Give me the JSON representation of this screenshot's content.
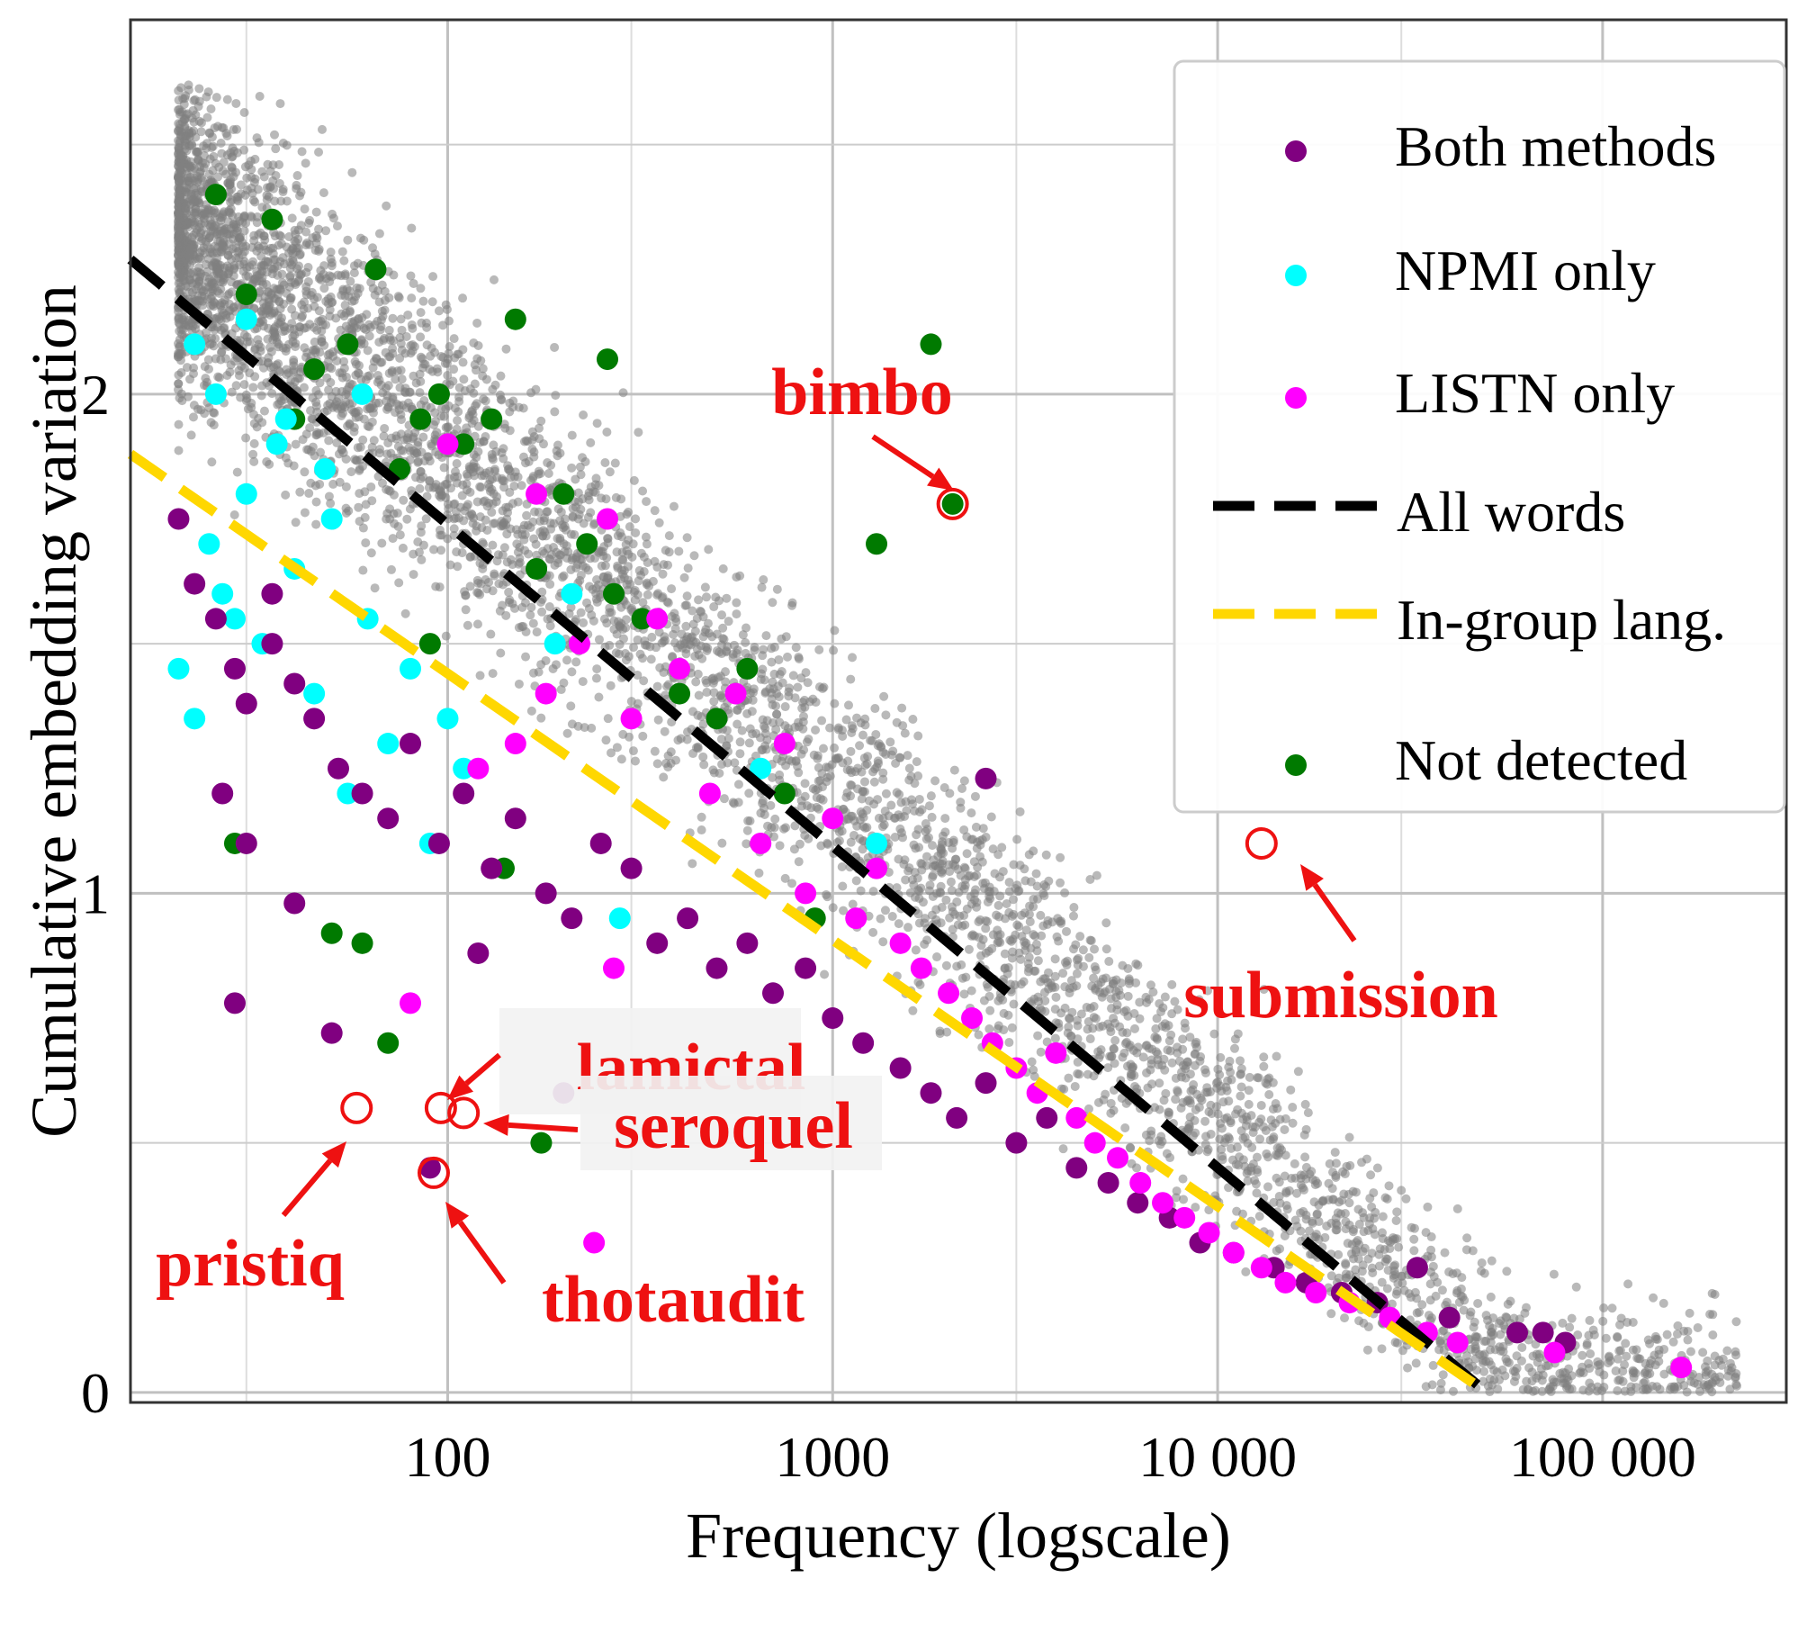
{
  "colors": {
    "background_points": "#808080",
    "both": "#800080",
    "npmi": "#00ffff",
    "listn": "#ff00ff",
    "not_detected": "#007a00",
    "all_words_line": "#000000",
    "ingroup_line": "#ffd700",
    "annotation": "#ee1111",
    "grid": "#c0c0c0"
  },
  "chart_data": {
    "type": "scatter",
    "xlabel": "Frequency (logscale)",
    "ylabel": "Cumulative embedding variation",
    "x_scale": "log",
    "xlim": [
      15,
      300000
    ],
    "ylim": [
      -0.02,
      2.75
    ],
    "x_ticks": [
      100,
      1000,
      10000,
      100000
    ],
    "x_tick_labels": [
      "100",
      "1000",
      "10 000",
      "100 000"
    ],
    "y_ticks": [
      0,
      1,
      2
    ],
    "y_tick_labels": [
      "0",
      "1",
      "2"
    ],
    "grid": true,
    "legend_position": "top-right",
    "legend": [
      {
        "label": "Both methods",
        "kind": "marker",
        "series": "both"
      },
      {
        "label": "NPMI only",
        "kind": "marker",
        "series": "npmi"
      },
      {
        "label": "LISTN only",
        "kind": "marker",
        "series": "listn"
      },
      {
        "label": "All words",
        "kind": "dashed-line",
        "series": "all_words"
      },
      {
        "label": "In-group lang.",
        "kind": "dashed-line",
        "series": "ingroup"
      },
      {
        "label": "Not detected",
        "kind": "marker",
        "series": "not_detected"
      }
    ],
    "lines": [
      {
        "name": "All words",
        "x": [
          15,
          50000
        ],
        "y": [
          2.27,
          0.0
        ]
      },
      {
        "name": "In-group lang.",
        "x": [
          15,
          50000
        ],
        "y": [
          1.88,
          0.0
        ]
      }
    ],
    "series": [
      {
        "name": "Both methods",
        "x": [
          20,
          22,
          25,
          28,
          30,
          35,
          40,
          45,
          52,
          60,
          70,
          80,
          95,
          110,
          130,
          150,
          180,
          210,
          250,
          300,
          350,
          420,
          500,
          600,
          700,
          850,
          1000,
          1200,
          1500,
          1800,
          2100,
          2500,
          3000,
          3600,
          4300,
          5200,
          6200,
          7500,
          9000,
          11000,
          14000,
          17000,
          21000,
          26000,
          33000,
          40000,
          60000,
          70000,
          80000,
          28,
          50,
          30,
          40,
          26,
          90,
          2500,
          35,
          120,
          200
        ],
        "y": [
          1.75,
          1.62,
          1.55,
          1.45,
          1.38,
          1.5,
          1.42,
          1.35,
          1.25,
          1.2,
          1.15,
          1.3,
          1.1,
          1.2,
          1.05,
          1.15,
          1.0,
          0.95,
          1.1,
          1.05,
          0.9,
          0.95,
          0.85,
          0.9,
          0.8,
          0.85,
          0.75,
          0.7,
          0.65,
          0.6,
          0.55,
          0.62,
          0.5,
          0.55,
          0.45,
          0.42,
          0.38,
          0.35,
          0.3,
          0.28,
          0.25,
          0.22,
          0.2,
          0.18,
          0.25,
          0.15,
          0.12,
          0.12,
          0.1,
          0.78,
          0.72,
          1.1,
          0.98,
          1.2,
          0.45,
          1.23,
          1.6,
          0.88,
          0.6
        ]
      },
      {
        "name": "NPMI only",
        "x": [
          20,
          22,
          24,
          26,
          28,
          30,
          33,
          36,
          40,
          45,
          50,
          55,
          62,
          70,
          80,
          90,
          100,
          110,
          190,
          210,
          280,
          650,
          1300,
          22,
          25,
          30,
          38,
          48,
          60
        ],
        "y": [
          1.45,
          1.35,
          1.7,
          1.6,
          1.55,
          1.8,
          1.5,
          1.9,
          1.65,
          1.4,
          1.75,
          1.2,
          1.55,
          1.3,
          1.45,
          1.1,
          1.35,
          1.25,
          1.5,
          1.6,
          0.95,
          1.25,
          1.1,
          2.1,
          2.0,
          2.15,
          1.95,
          1.85,
          2.0
        ]
      },
      {
        "name": "LISTN only",
        "x": [
          80,
          100,
          120,
          150,
          180,
          220,
          260,
          300,
          350,
          400,
          480,
          560,
          650,
          750,
          850,
          1000,
          1150,
          1300,
          1500,
          1700,
          2000,
          2300,
          2600,
          3000,
          3400,
          3800,
          4300,
          4800,
          5500,
          6300,
          7200,
          8200,
          9500,
          11000,
          13000,
          15000,
          18000,
          22000,
          28000,
          35000,
          42000,
          75000,
          160000,
          240,
          170,
          270
        ],
        "y": [
          0.78,
          1.9,
          1.25,
          1.3,
          1.4,
          1.5,
          1.75,
          1.35,
          1.55,
          1.45,
          1.2,
          1.4,
          1.1,
          1.3,
          1.0,
          1.15,
          0.95,
          1.05,
          0.9,
          0.85,
          0.8,
          0.75,
          0.7,
          0.65,
          0.6,
          0.68,
          0.55,
          0.5,
          0.47,
          0.42,
          0.38,
          0.35,
          0.32,
          0.28,
          0.25,
          0.22,
          0.2,
          0.18,
          0.15,
          0.12,
          0.1,
          0.08,
          0.05,
          0.3,
          1.8,
          0.85
        ]
      },
      {
        "name": "Not detected",
        "x": [
          25,
          30,
          35,
          40,
          45,
          55,
          65,
          75,
          85,
          95,
          110,
          130,
          150,
          170,
          200,
          230,
          270,
          320,
          400,
          500,
          600,
          750,
          900,
          1300,
          1800,
          2050,
          28,
          50,
          60,
          70,
          90,
          140,
          175,
          260
        ],
        "y": [
          2.4,
          2.2,
          2.35,
          1.95,
          2.05,
          2.1,
          2.25,
          1.85,
          1.95,
          2.0,
          1.9,
          1.95,
          2.15,
          1.65,
          1.8,
          1.7,
          1.6,
          1.55,
          1.4,
          1.35,
          1.45,
          1.2,
          0.95,
          1.7,
          2.1,
          1.78,
          1.1,
          0.92,
          0.9,
          0.7,
          1.5,
          1.05,
          0.5,
          2.07
        ]
      }
    ],
    "annotations": [
      {
        "text": "bimbo",
        "x": 2050,
        "y": 1.78
      },
      {
        "text": "submission",
        "x": 13000,
        "y": 1.1
      },
      {
        "text": "lamictal",
        "x": 96,
        "y": 0.57
      },
      {
        "text": "seroquel",
        "x": 110,
        "y": 0.56
      },
      {
        "text": "pristiq",
        "x": 58,
        "y": 0.57
      },
      {
        "text": "thotaudit",
        "x": 92,
        "y": 0.44
      }
    ]
  }
}
